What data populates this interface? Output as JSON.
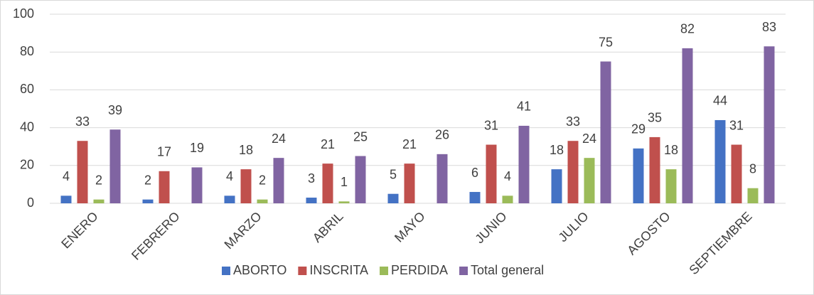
{
  "chart_data": {
    "type": "bar",
    "categories": [
      "ENERO",
      "FEBRERO",
      "MARZO",
      "ABRIL",
      "MAYO",
      "JUNIO",
      "JULIO",
      "AGOSTO",
      "SEPTIEMBRE"
    ],
    "series": [
      {
        "name": "ABORTO",
        "color": "#4472c4",
        "values": [
          4,
          2,
          4,
          3,
          5,
          6,
          18,
          29,
          44
        ]
      },
      {
        "name": "INSCRITA",
        "color": "#c0504d",
        "values": [
          33,
          17,
          18,
          21,
          21,
          31,
          33,
          35,
          31
        ]
      },
      {
        "name": "PERDIDA",
        "color": "#9bbb59",
        "values": [
          2,
          null,
          2,
          1,
          null,
          4,
          24,
          18,
          8
        ]
      },
      {
        "name": "Total general",
        "color": "#8064a2",
        "values": [
          39,
          19,
          24,
          25,
          26,
          41,
          75,
          82,
          83
        ]
      }
    ],
    "ylim": [
      0,
      100
    ],
    "yticks": [
      0,
      20,
      40,
      60,
      80,
      100
    ],
    "grid": true,
    "legend": "bottom"
  }
}
